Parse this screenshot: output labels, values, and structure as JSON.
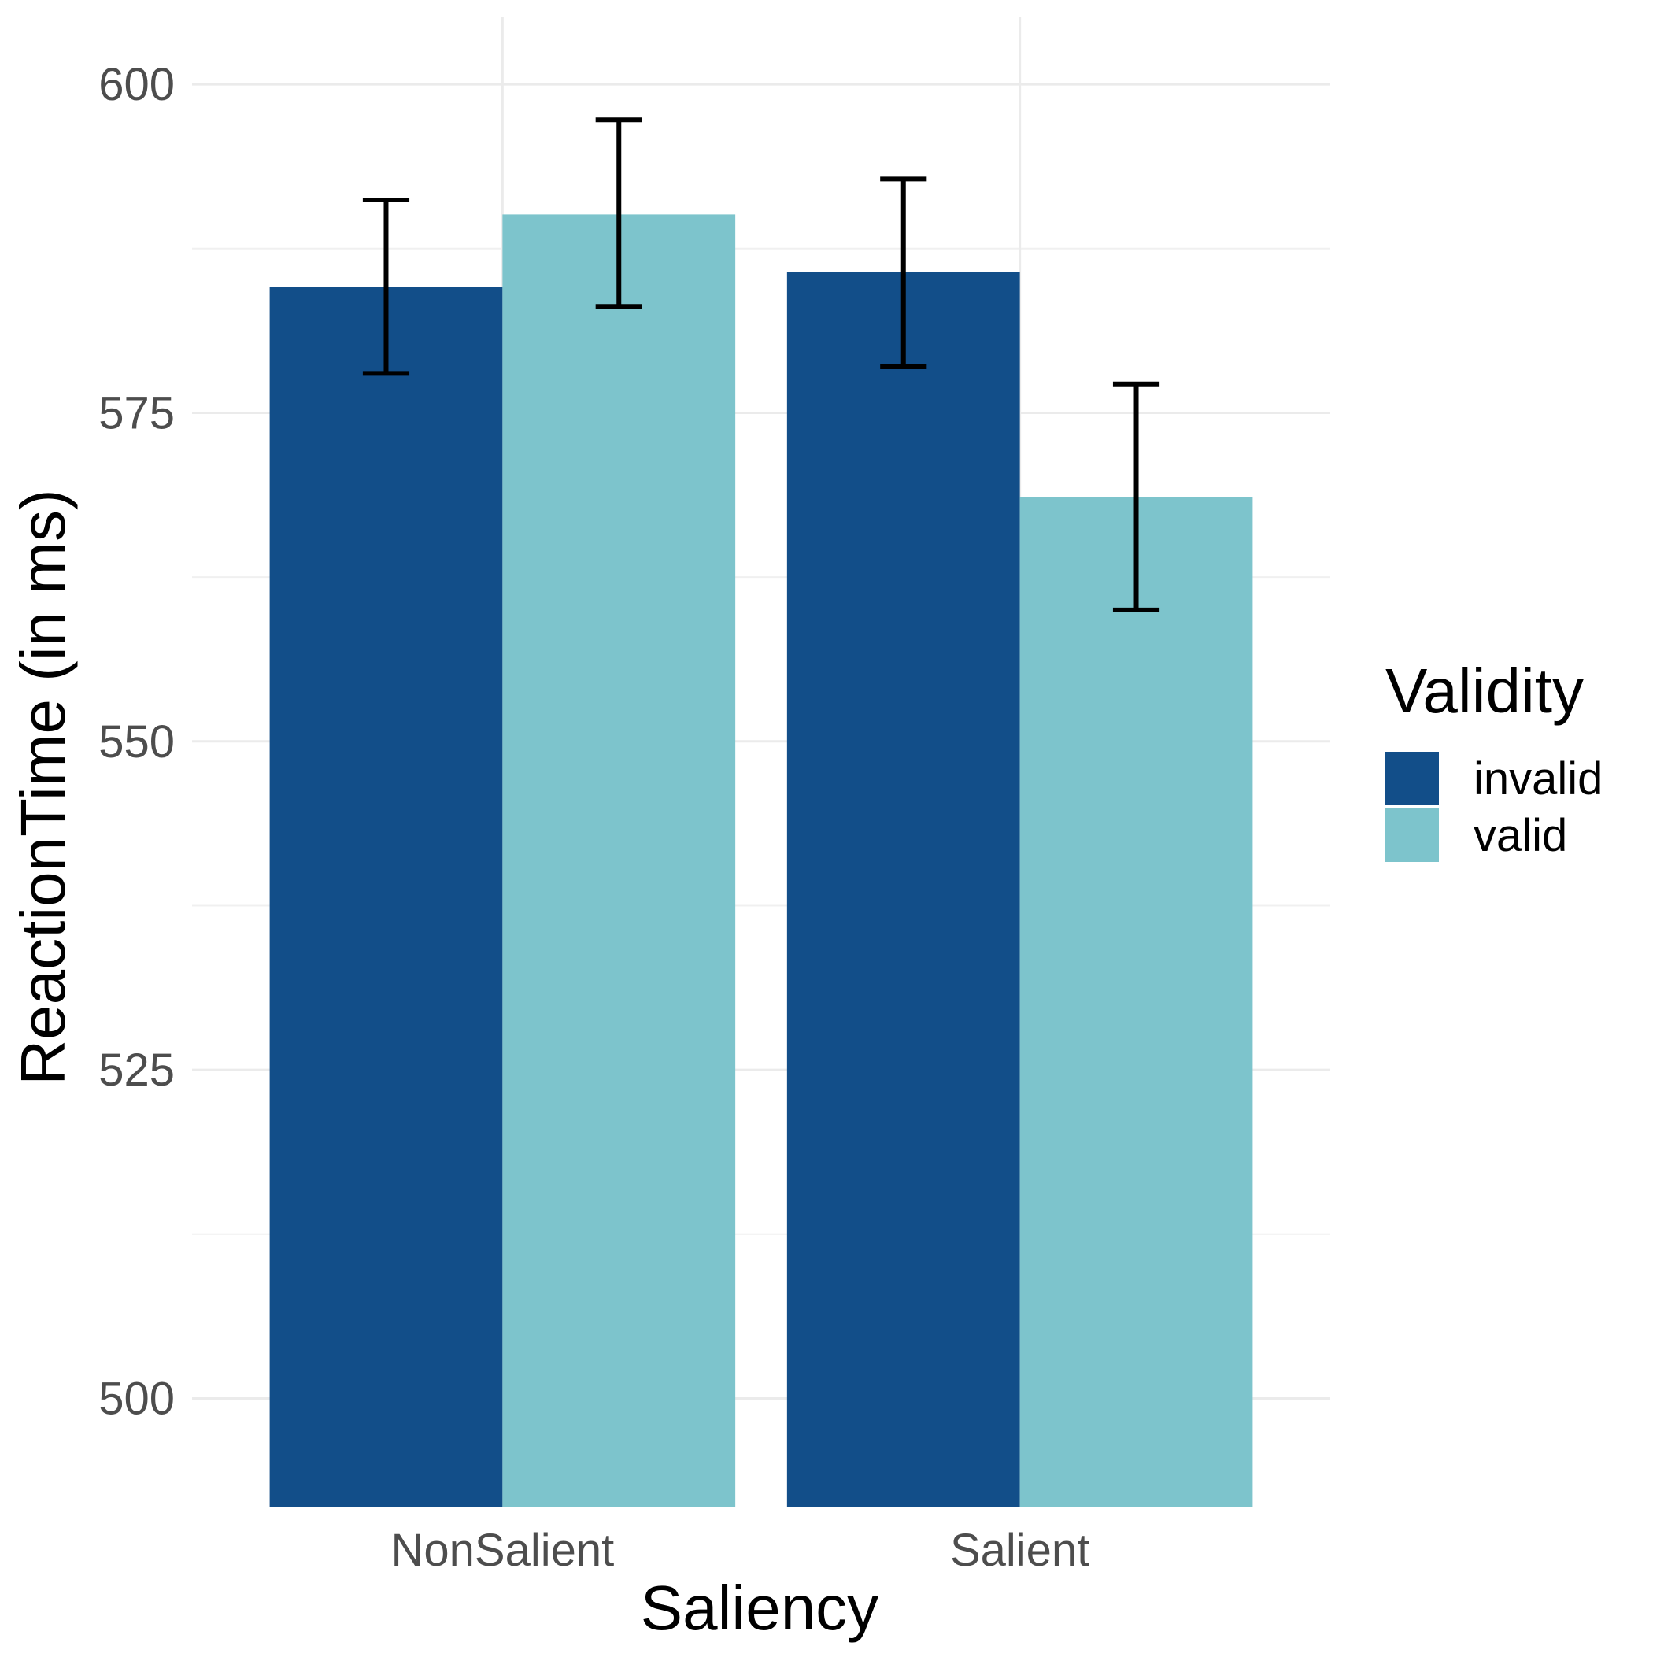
{
  "chart_data": {
    "type": "bar",
    "xlabel": "Saliency",
    "ylabel": "ReactionTime (in ms)",
    "categories": [
      "NonSalient",
      "Salient"
    ],
    "yticks": [
      500,
      525,
      550,
      575,
      600
    ],
    "ylim": [
      491.7,
      605.1
    ],
    "grid": true,
    "legend": {
      "title": "Validity",
      "position": "right"
    },
    "series": [
      {
        "name": "invalid",
        "color": "#124e89",
        "values": [
          584.6,
          585.7
        ],
        "err_low": [
          578.0,
          578.5
        ],
        "err_high": [
          591.2,
          592.8
        ]
      },
      {
        "name": "valid",
        "color": "#7dc4cc",
        "values": [
          590.1,
          568.6
        ],
        "err_low": [
          583.1,
          560.0
        ],
        "err_high": [
          597.3,
          577.2
        ]
      }
    ]
  }
}
